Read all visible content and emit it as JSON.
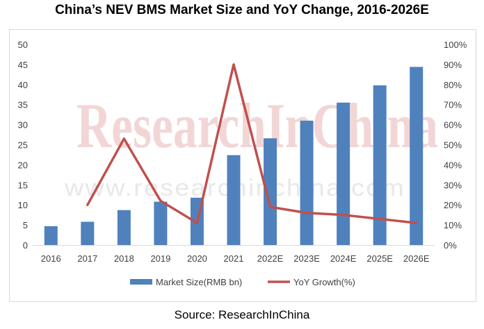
{
  "title": "China’s NEV BMS Market Size and YoY Change, 2016-2026E",
  "source": "Source: ResearchInChina",
  "watermark": {
    "brand": "ResearchInChina",
    "url": "www.researchinchina.com"
  },
  "chart_data": {
    "type": "bar",
    "categories": [
      "2016",
      "2017",
      "2018",
      "2019",
      "2020",
      "2021",
      "2022E",
      "2023E",
      "2024E",
      "2025E",
      "2026E"
    ],
    "series": [
      {
        "name": "Market Size(RMB bn)",
        "type": "bar",
        "axis": "left",
        "values": [
          4.7,
          5.8,
          8.7,
          10.8,
          11.8,
          22.4,
          26.6,
          31.0,
          35.5,
          39.8,
          44.4
        ],
        "color": "#4f81bd"
      },
      {
        "name": "YoY Growth(%)",
        "type": "line",
        "axis": "right",
        "values": [
          null,
          20,
          53,
          22,
          11,
          90,
          19,
          16,
          15,
          13,
          11
        ],
        "color": "#c0504d"
      }
    ],
    "y_left": {
      "ylim": [
        0,
        50
      ],
      "ticks": [
        0,
        5,
        10,
        15,
        20,
        25,
        30,
        35,
        40,
        45,
        50
      ]
    },
    "y_right": {
      "ylim": [
        0,
        100
      ],
      "ticks": [
        "0%",
        "10%",
        "20%",
        "30%",
        "40%",
        "50%",
        "60%",
        "70%",
        "80%",
        "90%",
        "100%"
      ]
    },
    "grid": false,
    "legend_position": "bottom"
  }
}
